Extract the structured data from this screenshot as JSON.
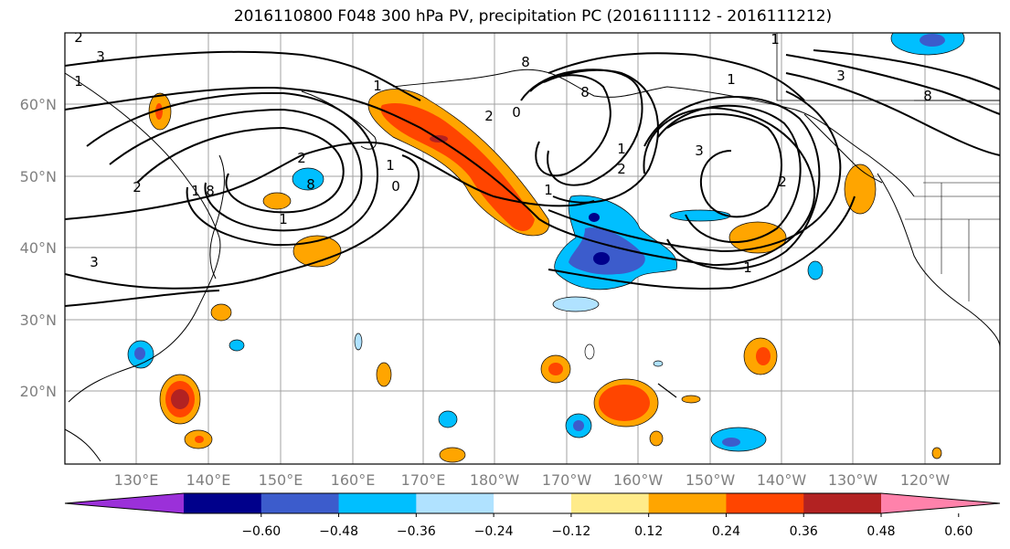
{
  "title": "2016110800 F048 300 hPa PV, precipitation PC (2016111112 - 2016111212)",
  "map": {
    "lon_labels": [
      "130°E",
      "140°E",
      "150°E",
      "160°E",
      "170°E",
      "180°W",
      "170°W",
      "160°W",
      "150°W",
      "140°W",
      "130°W",
      "120°W"
    ],
    "lat_labels": [
      "60°N",
      "50°N",
      "40°N",
      "30°N",
      "20°N"
    ],
    "contour_labels": [
      "2",
      "3",
      "1",
      "2",
      "1",
      "3",
      "2",
      "1",
      "0",
      "8",
      "1",
      "2",
      "0",
      "8",
      "1",
      "8",
      "1",
      "3",
      "2",
      "1",
      "3",
      "1",
      "8",
      "2",
      "1",
      "8",
      "1"
    ],
    "grid_color": "#a0a0a0"
  },
  "colorbar": {
    "ticks": [
      "−0.60",
      "−0.48",
      "−0.36",
      "−0.24",
      "−0.12",
      "0.12",
      "0.24",
      "0.36",
      "0.48",
      "0.60"
    ],
    "colors": [
      "#9b30d9",
      "#00008b",
      "#3c5ccc",
      "#00bfff",
      "#b0e2ff",
      "#ffffff",
      "#ffeb8a",
      "#ffa500",
      "#ff4500",
      "#b22222",
      "#ff82ab"
    ]
  }
}
